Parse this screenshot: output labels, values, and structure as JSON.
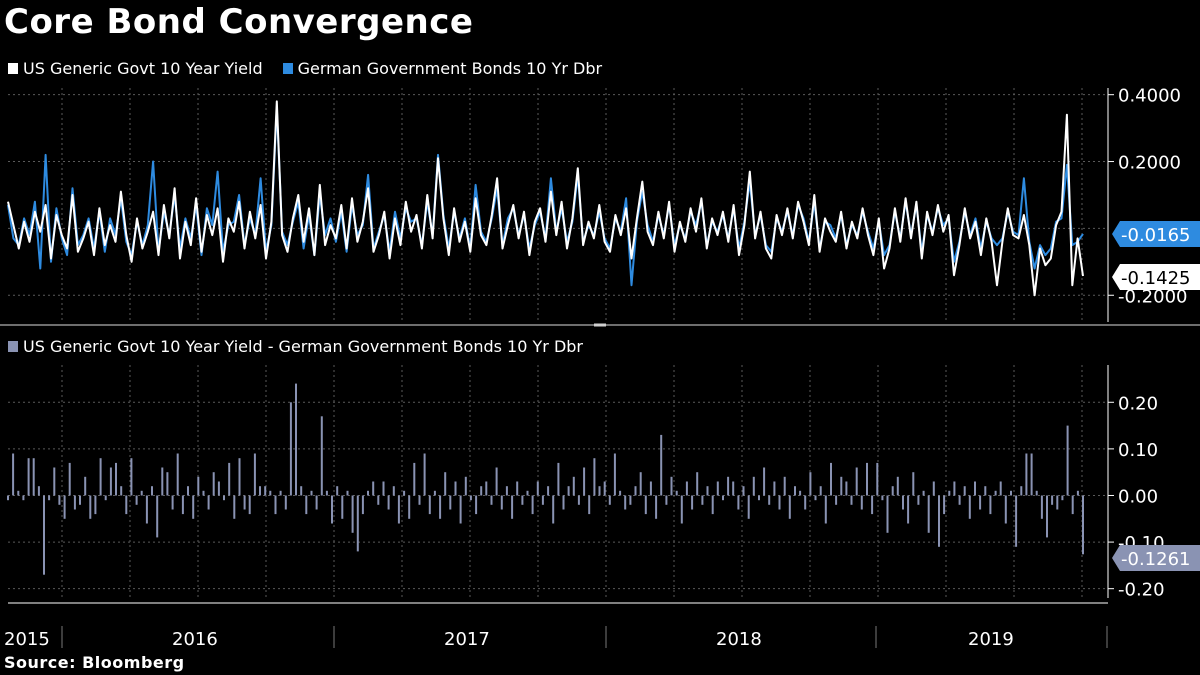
{
  "title": "Core Bond Convergence",
  "source": "Source:  Bloomberg",
  "colors": {
    "us": "#ffffff",
    "de": "#2e8be0",
    "spread": "#8a93b3",
    "grid": "#5a5a5a"
  },
  "chart_data": [
    {
      "type": "line",
      "title": "",
      "legend_position": "top-left",
      "series": [
        {
          "name": "US Generic Govt 10 Year Yield",
          "values": [
            0.08,
            0.01,
            -0.06,
            0.02,
            -0.04,
            0.05,
            -0.01,
            0.07,
            -0.09,
            0.04,
            -0.02,
            -0.06,
            0.1,
            -0.07,
            -0.03,
            0.02,
            -0.08,
            0.06,
            -0.05,
            0.01,
            -0.04,
            0.11,
            -0.02,
            -0.1,
            0.03,
            -0.06,
            -0.01,
            0.05,
            -0.08,
            0.07,
            -0.03,
            0.12,
            -0.09,
            0.02,
            -0.05,
            0.09,
            -0.07,
            0.04,
            -0.02,
            0.06,
            -0.1,
            0.03,
            -0.01,
            0.08,
            -0.06,
            0.05,
            -0.03,
            0.07,
            -0.09,
            0.02,
            0.38,
            -0.02,
            -0.07,
            0.03,
            0.1,
            -0.04,
            0.06,
            -0.08,
            0.13,
            -0.05,
            0.01,
            -0.03,
            0.07,
            -0.06,
            0.09,
            -0.04,
            0.02,
            0.12,
            -0.07,
            -0.02,
            0.05,
            -0.09,
            0.03,
            -0.05,
            0.08,
            -0.01,
            0.04,
            -0.06,
            0.1,
            -0.03,
            0.21,
            0.03,
            -0.08,
            0.06,
            -0.04,
            0.02,
            -0.07,
            0.09,
            -0.02,
            -0.05,
            0.04,
            0.15,
            -0.06,
            0.01,
            0.07,
            -0.03,
            0.05,
            -0.08,
            0.02,
            0.06,
            -0.04,
            0.11,
            -0.02,
            0.08,
            -0.06,
            0.03,
            0.18,
            -0.05,
            0.02,
            -0.03,
            0.07,
            -0.04,
            -0.07,
            0.04,
            -0.02,
            0.06,
            -0.09,
            0.03,
            0.14,
            -0.01,
            -0.05,
            0.05,
            -0.03,
            0.08,
            -0.07,
            0.02,
            -0.04,
            0.06,
            -0.01,
            0.09,
            -0.06,
            0.03,
            -0.02,
            0.05,
            -0.04,
            0.07,
            -0.08,
            0.01,
            0.17,
            -0.03,
            0.05,
            -0.06,
            -0.09,
            0.04,
            -0.02,
            0.06,
            -0.03,
            0.08,
            0.02,
            -0.05,
            0.1,
            -0.07,
            0.03,
            -0.01,
            -0.04,
            0.05,
            -0.06,
            0.02,
            -0.03,
            0.06,
            -0.02,
            -0.08,
            0.03,
            -0.12,
            -0.06,
            0.06,
            -0.04,
            0.09,
            -0.03,
            0.08,
            -0.09,
            0.05,
            -0.02,
            0.07,
            -0.01,
            0.04,
            -0.14,
            -0.05,
            0.06,
            -0.03,
            0.02,
            -0.08,
            0.03,
            -0.04,
            -0.17,
            -0.04,
            0.06,
            -0.02,
            -0.03,
            0.04,
            -0.05,
            -0.2,
            -0.06,
            -0.11,
            -0.09,
            0.01,
            0.05,
            0.34,
            -0.17,
            -0.03,
            -0.1425
          ]
        },
        {
          "name": "German Government Bonds 10 Yr Dbr",
          "values": [
            0.07,
            -0.03,
            -0.05,
            0.03,
            -0.02,
            0.08,
            -0.12,
            0.22,
            -0.1,
            0.06,
            -0.03,
            -0.08,
            0.12,
            -0.05,
            -0.02,
            0.03,
            -0.06,
            0.05,
            -0.07,
            0.03,
            -0.02,
            0.09,
            -0.04,
            -0.08,
            0.02,
            -0.05,
            0.01,
            0.2,
            -0.07,
            0.05,
            -0.02,
            0.1,
            -0.06,
            0.03,
            -0.03,
            0.07,
            -0.08,
            0.06,
            0.01,
            0.17,
            -0.07,
            0.01,
            0.02,
            0.1,
            -0.05,
            0.03,
            -0.02,
            0.15,
            -0.07,
            0.01,
            0.36,
            -0.01,
            -0.05,
            0.02,
            0.08,
            -0.06,
            0.04,
            -0.08,
            0.1,
            -0.02,
            0.03,
            -0.04,
            0.05,
            -0.07,
            0.07,
            -0.02,
            0.01,
            0.16,
            -0.06,
            -0.01,
            0.04,
            -0.07,
            0.05,
            -0.03,
            0.06,
            0.02,
            0.03,
            -0.05,
            0.08,
            -0.02,
            0.22,
            0.04,
            -0.06,
            0.05,
            -0.03,
            0.03,
            -0.06,
            0.13,
            -0.01,
            -0.04,
            0.03,
            0.12,
            -0.05,
            0.03,
            0.06,
            -0.02,
            0.04,
            -0.06,
            0.01,
            0.05,
            -0.03,
            0.15,
            -0.01,
            0.06,
            -0.04,
            0.02,
            0.16,
            -0.04,
            0.01,
            -0.02,
            0.05,
            -0.03,
            -0.06,
            0.03,
            -0.01,
            0.09,
            -0.17,
            0.02,
            0.11,
            0.01,
            -0.04,
            0.04,
            -0.02,
            0.07,
            -0.05,
            0.01,
            -0.03,
            0.05,
            0.01,
            0.08,
            -0.05,
            0.02,
            -0.01,
            0.04,
            -0.03,
            0.06,
            -0.06,
            0.02,
            0.14,
            -0.02,
            0.04,
            -0.05,
            -0.07,
            0.03,
            -0.01,
            0.05,
            -0.02,
            0.07,
            0.03,
            -0.04,
            0.08,
            -0.06,
            0.02,
            0.01,
            -0.03,
            0.04,
            -0.05,
            0.01,
            -0.02,
            0.05,
            -0.01,
            -0.06,
            0.02,
            -0.08,
            -0.05,
            0.05,
            -0.03,
            0.08,
            -0.02,
            0.07,
            -0.07,
            0.04,
            -0.01,
            0.06,
            0.01,
            0.03,
            -0.1,
            -0.04,
            0.05,
            -0.02,
            0.03,
            -0.06,
            0.02,
            -0.03,
            -0.05,
            -0.03,
            0.05,
            -0.01,
            -0.02,
            0.15,
            -0.04,
            -0.12,
            -0.05,
            -0.08,
            -0.06,
            0.02,
            0.03,
            0.19,
            -0.05,
            -0.04,
            -0.0165
          ]
        }
      ],
      "x_start": "2015-10",
      "x_end": "2019-06",
      "yticks": [
        "0.4000",
        "0.2000",
        "-0.2000"
      ],
      "ylim": [
        -0.28,
        0.42
      ],
      "last_values": {
        "de": "-0.0165",
        "us": "-0.1425"
      }
    },
    {
      "type": "bar",
      "title": "",
      "legend_position": "top-left",
      "series": [
        {
          "name": "US Generic Govt 10 Year Yield - German Government Bonds 10 Yr Dbr",
          "values": [
            -0.01,
            0.09,
            0.01,
            -0.01,
            0.08,
            0.08,
            0.02,
            -0.17,
            -0.01,
            0.06,
            -0.02,
            -0.05,
            0.07,
            -0.03,
            -0.02,
            0.04,
            -0.05,
            -0.04,
            0.08,
            -0.01,
            0.06,
            0.07,
            0.02,
            -0.04,
            0.08,
            -0.02,
            0.01,
            -0.06,
            0.02,
            -0.09,
            0.06,
            0.05,
            -0.03,
            0.09,
            -0.04,
            0.02,
            -0.05,
            0.04,
            0.01,
            -0.03,
            0.05,
            0.03,
            -0.01,
            0.07,
            -0.05,
            0.08,
            -0.03,
            -0.04,
            0.09,
            0.02,
            0.02,
            0.01,
            -0.04,
            0.01,
            -0.03,
            0.2,
            0.24,
            0.02,
            -0.04,
            0.01,
            -0.03,
            0.17,
            0.01,
            -0.06,
            0.02,
            -0.05,
            0.01,
            -0.08,
            -0.12,
            -0.04,
            0.01,
            0.03,
            -0.02,
            0.03,
            -0.03,
            0.02,
            -0.06,
            0.01,
            -0.05,
            0.07,
            -0.02,
            0.09,
            -0.04,
            0.01,
            -0.05,
            0.05,
            -0.03,
            0.03,
            -0.06,
            0.04,
            -0.01,
            -0.04,
            0.02,
            0.03,
            -0.02,
            0.06,
            -0.03,
            0.02,
            -0.05,
            0.03,
            -0.02,
            0.01,
            -0.04,
            0.03,
            -0.02,
            0.02,
            -0.06,
            0.07,
            -0.03,
            0.02,
            0.04,
            -0.02,
            0.06,
            -0.04,
            0.08,
            0.02,
            0.03,
            -0.02,
            0.09,
            0.01,
            -0.03,
            -0.02,
            0.02,
            0.05,
            -0.04,
            0.03,
            -0.05,
            0.13,
            -0.02,
            0.04,
            0.01,
            -0.06,
            0.03,
            -0.03,
            0.05,
            -0.02,
            0.02,
            -0.04,
            0.03,
            -0.01,
            0.04,
            0.03,
            -0.03,
            0.02,
            -0.05,
            0.04,
            -0.01,
            0.06,
            -0.02,
            0.03,
            -0.03,
            0.04,
            -0.05,
            0.02,
            0.01,
            -0.03,
            0.05,
            -0.01,
            0.02,
            -0.06,
            0.07,
            -0.02,
            0.04,
            0.03,
            -0.02,
            0.06,
            -0.03,
            0.07,
            -0.04,
            0.07,
            -0.01,
            -0.08,
            0.02,
            0.04,
            -0.03,
            -0.06,
            0.05,
            -0.02,
            0.01,
            -0.08,
            0.03,
            -0.11,
            -0.04,
            0.01,
            0.03,
            -0.02,
            0.02,
            -0.05,
            0.03,
            -0.03,
            0.02,
            -0.04,
            0.01,
            0.03,
            -0.06,
            0.01,
            -0.11,
            0.02,
            0.09,
            0.09,
            0.01,
            -0.05,
            -0.09,
            -0.02,
            -0.03,
            -0.01,
            0.15,
            -0.04,
            0.01,
            -0.1261
          ]
        }
      ],
      "x_start": "2015-10",
      "x_end": "2019-06",
      "yticks": [
        "0.20",
        "0.10",
        "0.00",
        "-0.10",
        "-0.20"
      ],
      "ylim": [
        -0.22,
        0.28
      ],
      "last_value": "-0.1261"
    }
  ],
  "x_axis": {
    "year_labels": [
      "2015",
      "2016",
      "2017",
      "2018",
      "2019"
    ]
  }
}
